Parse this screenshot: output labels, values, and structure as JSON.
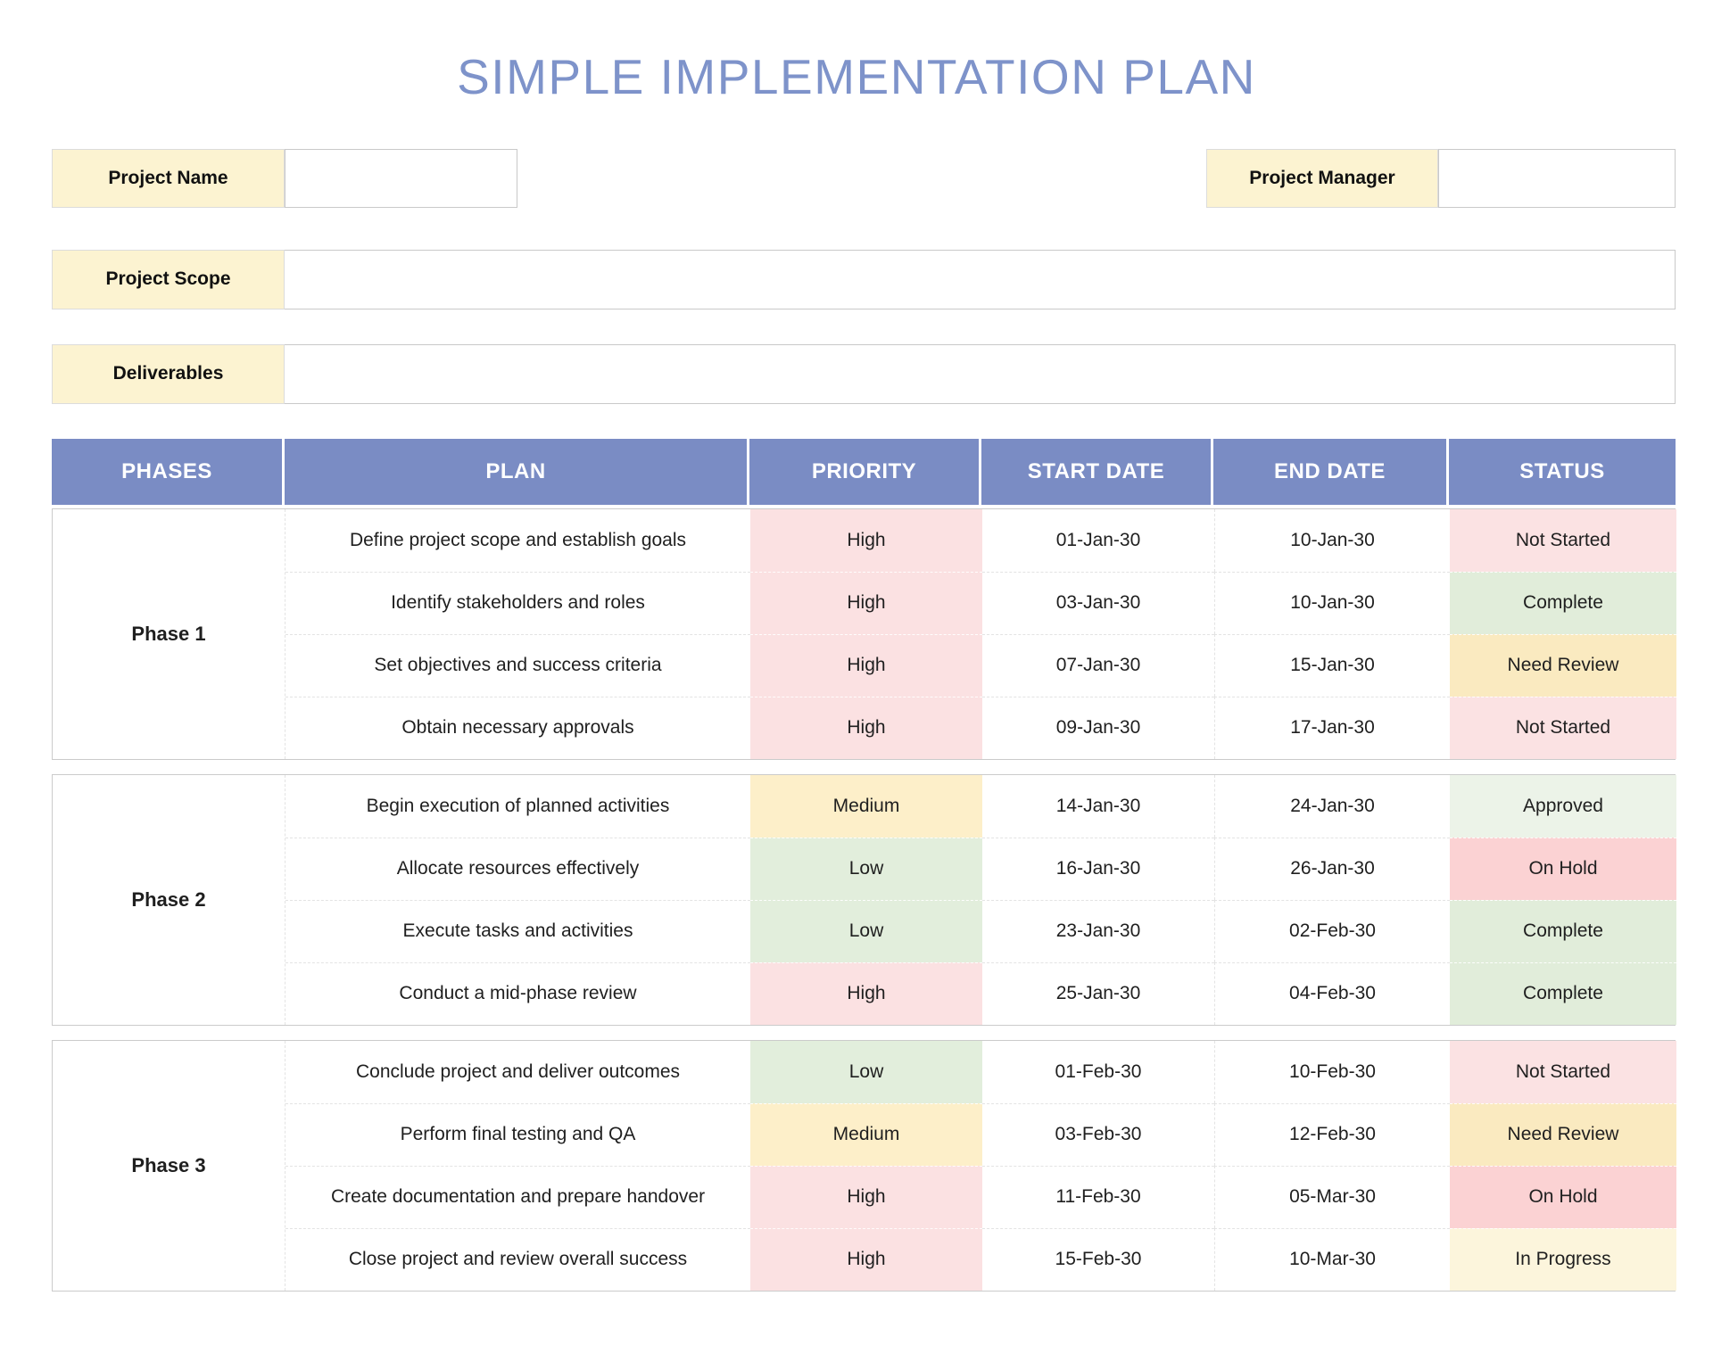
{
  "title": "SIMPLE IMPLEMENTATION PLAN",
  "fields": {
    "project_name": {
      "label": "Project Name",
      "value": ""
    },
    "project_manager": {
      "label": "Project Manager",
      "value": ""
    },
    "project_scope": {
      "label": "Project Scope",
      "value": ""
    },
    "deliverables": {
      "label": "Deliverables",
      "value": ""
    }
  },
  "table": {
    "headers": [
      "PHASES",
      "PLAN",
      "PRIORITY",
      "START DATE",
      "END DATE",
      "STATUS"
    ],
    "phases": [
      {
        "name": "Phase 1",
        "rows": [
          {
            "plan": "Define project scope and establish goals",
            "priority": "High",
            "start": "01-Jan-30",
            "end": "10-Jan-30",
            "status": "Not Started"
          },
          {
            "plan": "Identify stakeholders and roles",
            "priority": "High",
            "start": "03-Jan-30",
            "end": "10-Jan-30",
            "status": "Complete"
          },
          {
            "plan": "Set objectives and success criteria",
            "priority": "High",
            "start": "07-Jan-30",
            "end": "15-Jan-30",
            "status": "Need Review"
          },
          {
            "plan": "Obtain necessary approvals",
            "priority": "High",
            "start": "09-Jan-30",
            "end": "17-Jan-30",
            "status": "Not Started"
          }
        ]
      },
      {
        "name": "Phase 2",
        "rows": [
          {
            "plan": "Begin execution of planned activities",
            "priority": "Medium",
            "start": "14-Jan-30",
            "end": "24-Jan-30",
            "status": "Approved"
          },
          {
            "plan": "Allocate resources effectively",
            "priority": "Low",
            "start": "16-Jan-30",
            "end": "26-Jan-30",
            "status": "On Hold"
          },
          {
            "plan": "Execute tasks and activities",
            "priority": "Low",
            "start": "23-Jan-30",
            "end": "02-Feb-30",
            "status": "Complete"
          },
          {
            "plan": "Conduct a mid-phase review",
            "priority": "High",
            "start": "25-Jan-30",
            "end": "04-Feb-30",
            "status": "Complete"
          }
        ]
      },
      {
        "name": "Phase 3",
        "rows": [
          {
            "plan": "Conclude project and deliver outcomes",
            "priority": "Low",
            "start": "01-Feb-30",
            "end": "10-Feb-30",
            "status": "Not Started"
          },
          {
            "plan": "Perform final testing and QA",
            "priority": "Medium",
            "start": "03-Feb-30",
            "end": "12-Feb-30",
            "status": "Need Review"
          },
          {
            "plan": "Create documentation and prepare handover",
            "priority": "High",
            "start": "11-Feb-30",
            "end": "05-Mar-30",
            "status": "On Hold"
          },
          {
            "plan": "Close project and review overall success",
            "priority": "High",
            "start": "15-Feb-30",
            "end": "10-Mar-30",
            "status": "In Progress"
          }
        ]
      }
    ]
  },
  "colors": {
    "title_text": "#7E93CA",
    "header_bg": "#7A8CC4",
    "label_bg": "#FCF3D1",
    "priority": {
      "High": "#FBE1E2",
      "Medium": "#FDEFC9",
      "Low": "#E2EEDC"
    },
    "status": {
      "Not Started": "#FBE2E3",
      "Complete": "#E1EDDA",
      "Need Review": "#FAEAC0",
      "Approved": "#ECF3E8",
      "On Hold": "#FBD2D3",
      "In Progress": "#FCF5DC"
    }
  }
}
